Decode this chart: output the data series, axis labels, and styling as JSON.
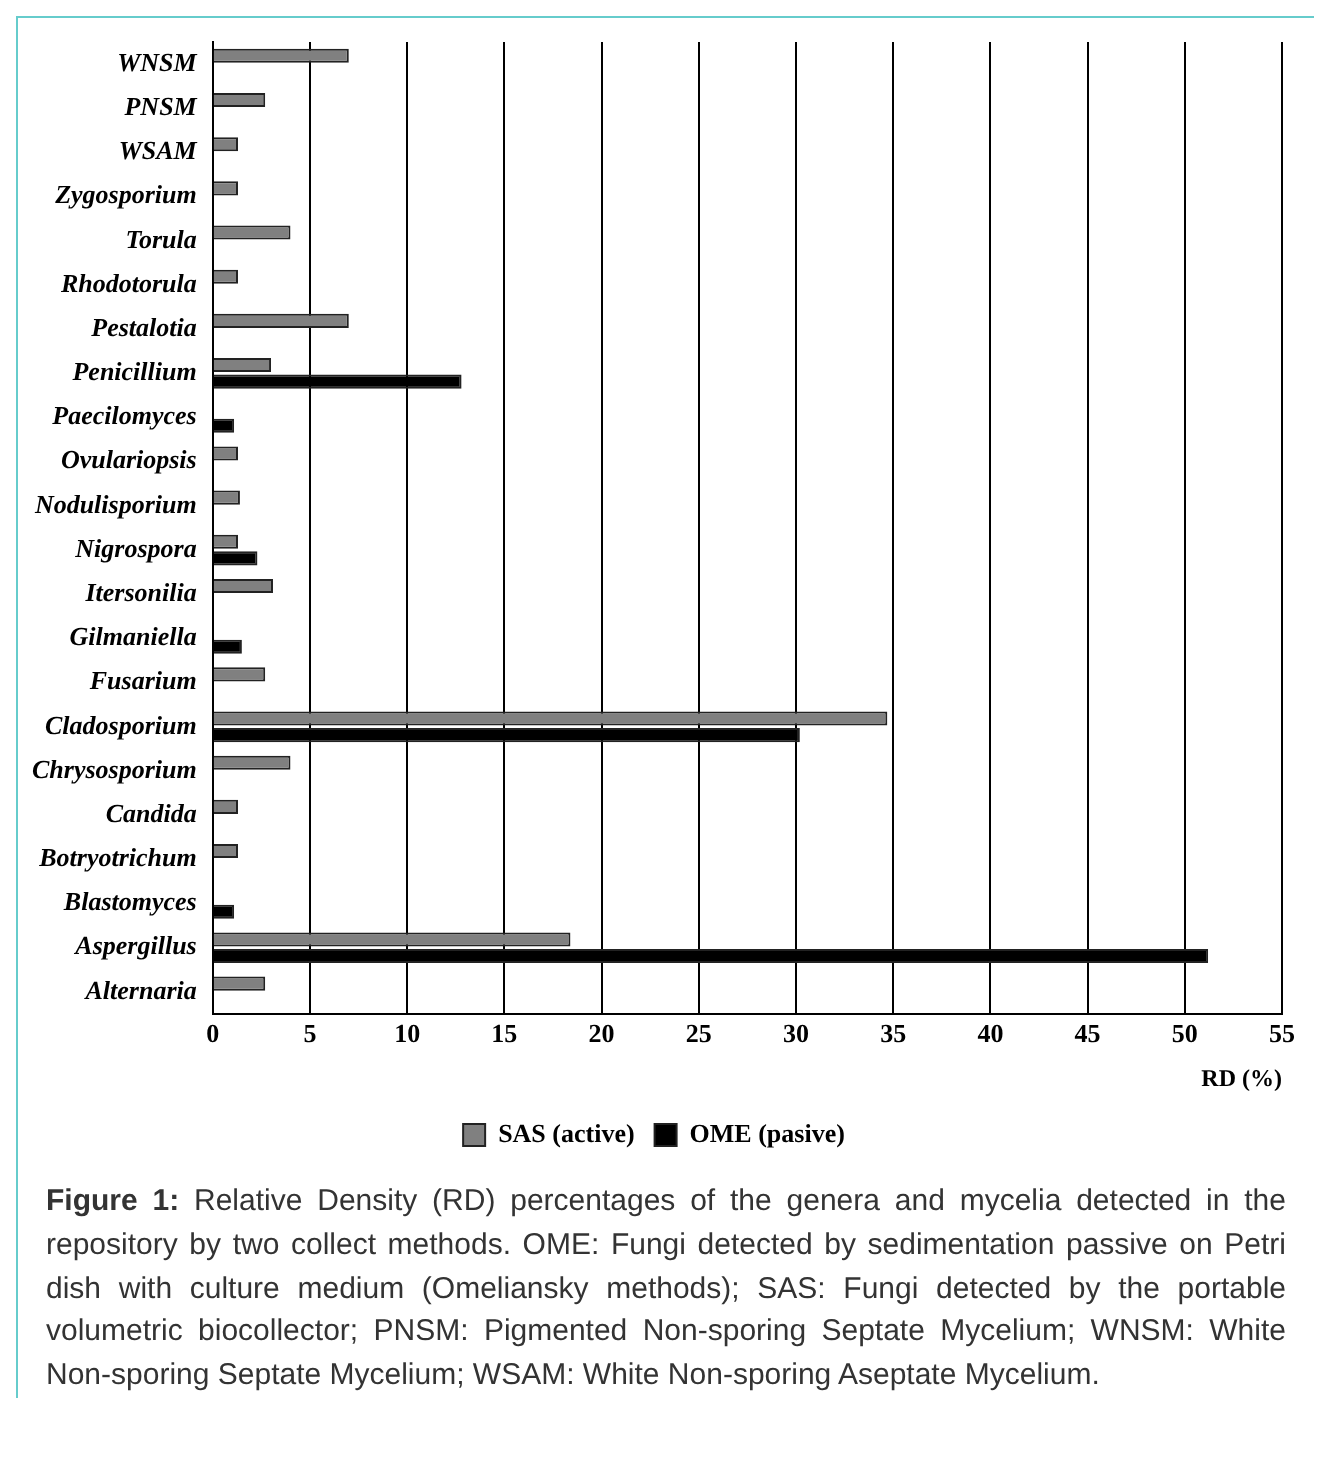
{
  "chart_data": {
    "type": "bar",
    "orientation": "horizontal",
    "xlabel": "RD (%)",
    "categories": [
      "WNSM",
      "PNSM",
      "WSAM",
      "Zygosporium",
      "Torula",
      "Rhodotorula",
      "Pestalotia",
      "Penicillium",
      "Paecilomyces",
      "Ovulariopsis",
      "Nodulisporium",
      "Nigrospora",
      "Itersonilia",
      "Gilmaniella",
      "Fusarium",
      "Cladosporium",
      "Chrysosporium",
      "Candida",
      "Botryotrichum",
      "Blastomyces",
      "Aspergillus",
      "Alternaria"
    ],
    "series": [
      {
        "name": "SAS (active)",
        "color": "#808080",
        "values": [
          7.0,
          2.7,
          1.3,
          1.3,
          4.0,
          1.3,
          7.0,
          3.0,
          null,
          1.3,
          1.4,
          1.3,
          3.1,
          null,
          2.7,
          34.7,
          4.0,
          1.3,
          1.3,
          null,
          18.4,
          2.7
        ]
      },
      {
        "name": "OME (pasive)",
        "color": "#000000",
        "values": [
          null,
          null,
          null,
          null,
          null,
          null,
          null,
          12.8,
          1.1,
          null,
          null,
          2.3,
          null,
          1.5,
          null,
          30.2,
          null,
          null,
          null,
          1.1,
          51.2,
          null
        ]
      }
    ],
    "xlim": [
      0,
      55
    ],
    "xticks": [
      0,
      5,
      10,
      15,
      20,
      25,
      30,
      35,
      40,
      45,
      50,
      55
    ],
    "grid": "x",
    "legend": "bottom",
    "annotations": [
      "Figure 1: Relative Density (RD) percentages of the genera and mycelia detected in the repository by two collect methods. OME: Fungi detected by sedimentation passive on Petri dish with culture medium (Omeliansky methods); SAS: Fungi detected by the portable volumetric biocollector; PNSM: Pigmented Non-sporing Septate Mycelium; WNSM: White Non-sporing Septate Mycelium; WSAM: White Non-sporing Aseptate Mycelium."
    ]
  }
}
